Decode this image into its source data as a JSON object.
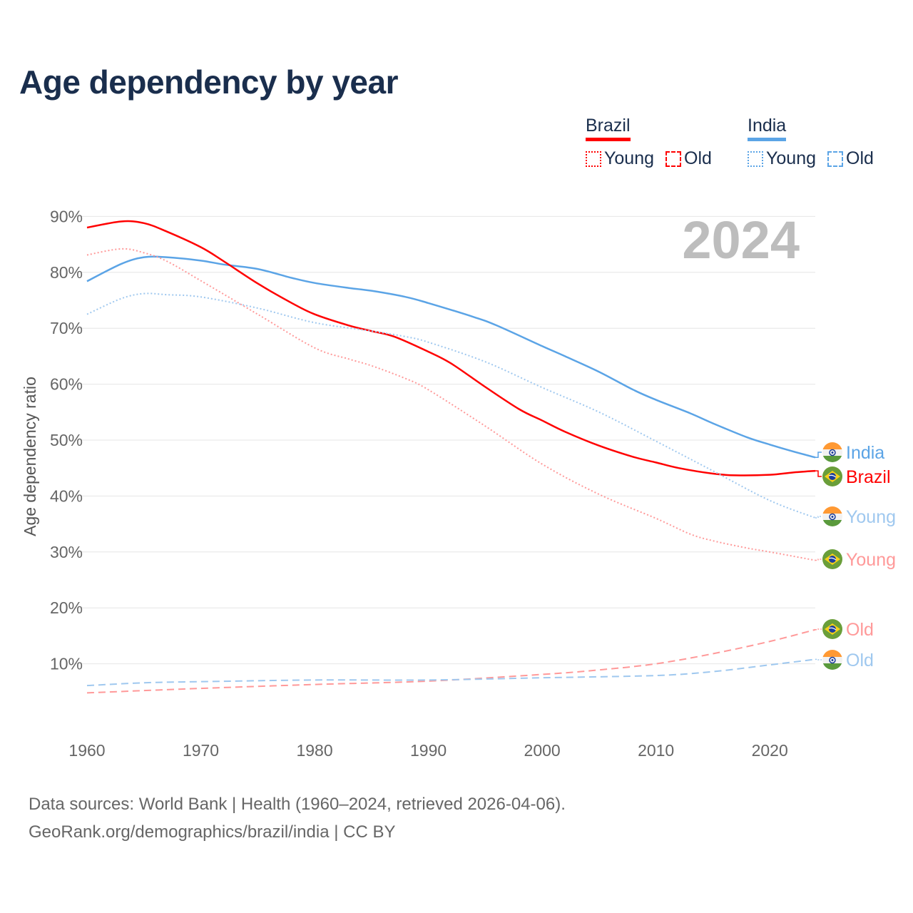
{
  "title": "Age dependency by year",
  "legend": {
    "groups": [
      {
        "name": "Brazil",
        "color": "#ff0000",
        "young": "Young",
        "old": "Old"
      },
      {
        "name": "India",
        "color": "#5ba4e6",
        "young": "Young",
        "old": "Old"
      }
    ]
  },
  "footer": {
    "line1": "Data sources: World Bank | Health (1960–2024, retrieved 2026-04-06).",
    "line2": "GeoRank.org/demographics/brazil/india | CC BY"
  },
  "chart_data": {
    "type": "line",
    "title": "Age dependency by year",
    "xlabel": "",
    "ylabel": "Age dependency ratio",
    "year_watermark": "2024",
    "xlim": [
      1960,
      2024
    ],
    "ylim": [
      0,
      92
    ],
    "x_ticks": [
      "1960",
      "1970",
      "1980",
      "1990",
      "2000",
      "2010",
      "2020"
    ],
    "y_ticks": [
      "10%",
      "20%",
      "30%",
      "40%",
      "50%",
      "60%",
      "70%",
      "80%",
      "90%"
    ],
    "grid": true,
    "series": [
      {
        "name": "India",
        "label": "India",
        "flag": "india",
        "color": "#5ba4e6",
        "style": "solid",
        "points": [
          [
            1960,
            78.4
          ],
          [
            1963,
            81.5
          ],
          [
            1965,
            82.7
          ],
          [
            1967,
            82.7
          ],
          [
            1970,
            82.1
          ],
          [
            1972,
            81.4
          ],
          [
            1975,
            80.6
          ],
          [
            1978,
            79
          ],
          [
            1980,
            78.1
          ],
          [
            1983,
            77.2
          ],
          [
            1985,
            76.7
          ],
          [
            1988,
            75.6
          ],
          [
            1990,
            74.5
          ],
          [
            1994,
            72
          ],
          [
            1996,
            70.5
          ],
          [
            2000,
            66.8
          ],
          [
            2002,
            65
          ],
          [
            2005,
            62.2
          ],
          [
            2008,
            59
          ],
          [
            2010,
            57.2
          ],
          [
            2013,
            54.8
          ],
          [
            2015,
            53
          ],
          [
            2018,
            50.5
          ],
          [
            2020,
            49.2
          ],
          [
            2022,
            48
          ],
          [
            2024,
            46.9
          ]
        ]
      },
      {
        "name": "Brazil",
        "label": "Brazil",
        "flag": "brazil",
        "color": "#ff0000",
        "style": "solid",
        "points": [
          [
            1960,
            88
          ],
          [
            1963,
            89.1
          ],
          [
            1965,
            88.8
          ],
          [
            1967,
            87.3
          ],
          [
            1970,
            84.5
          ],
          [
            1972,
            82
          ],
          [
            1975,
            78
          ],
          [
            1978,
            74.5
          ],
          [
            1980,
            72.5
          ],
          [
            1983,
            70.5
          ],
          [
            1985,
            69.5
          ],
          [
            1987,
            68.5
          ],
          [
            1990,
            65.8
          ],
          [
            1992,
            63.7
          ],
          [
            1995,
            59.5
          ],
          [
            1998,
            55.5
          ],
          [
            2000,
            53.5
          ],
          [
            2002,
            51.5
          ],
          [
            2005,
            49
          ],
          [
            2008,
            47
          ],
          [
            2010,
            46
          ],
          [
            2012,
            45
          ],
          [
            2015,
            44
          ],
          [
            2017,
            43.7
          ],
          [
            2020,
            43.8
          ],
          [
            2022,
            44.2
          ],
          [
            2024,
            44.5
          ]
        ]
      },
      {
        "name": "India Young",
        "label": "Young",
        "flag": "india",
        "color": "#9fc8ef",
        "style": "dotted",
        "points": [
          [
            1960,
            72.5
          ],
          [
            1963,
            75.3
          ],
          [
            1965,
            76.2
          ],
          [
            1967,
            76
          ],
          [
            1970,
            75.6
          ],
          [
            1975,
            73.6
          ],
          [
            1980,
            71
          ],
          [
            1985,
            69.5
          ],
          [
            1988,
            68.5
          ],
          [
            1990,
            67.5
          ],
          [
            1995,
            64
          ],
          [
            2000,
            59.4
          ],
          [
            2005,
            55
          ],
          [
            2010,
            49.8
          ],
          [
            2015,
            44.5
          ],
          [
            2020,
            39.2
          ],
          [
            2024,
            36.1
          ]
        ]
      },
      {
        "name": "Brazil Young",
        "label": "Young",
        "flag": "brazil",
        "color": "#ff9999",
        "style": "dotted",
        "points": [
          [
            1960,
            83.1
          ],
          [
            1963,
            84.2
          ],
          [
            1965,
            83.5
          ],
          [
            1967,
            82
          ],
          [
            1970,
            78.5
          ],
          [
            1975,
            72.5
          ],
          [
            1980,
            66.5
          ],
          [
            1983,
            64.5
          ],
          [
            1985,
            63.3
          ],
          [
            1988,
            61
          ],
          [
            1990,
            59
          ],
          [
            1995,
            52.5
          ],
          [
            2000,
            45.7
          ],
          [
            2005,
            40.3
          ],
          [
            2010,
            36
          ],
          [
            2013,
            33.2
          ],
          [
            2015,
            32
          ],
          [
            2018,
            30.7
          ],
          [
            2020,
            30
          ],
          [
            2024,
            28.5
          ]
        ]
      },
      {
        "name": "Brazil Old",
        "label": "Old",
        "flag": "brazil",
        "color": "#ff9999",
        "style": "dashed",
        "points": [
          [
            1960,
            4.8
          ],
          [
            1970,
            5.6
          ],
          [
            1980,
            6.3
          ],
          [
            1990,
            6.9
          ],
          [
            2000,
            8.1
          ],
          [
            2005,
            8.9
          ],
          [
            2010,
            10
          ],
          [
            2015,
            11.8
          ],
          [
            2020,
            14
          ],
          [
            2024,
            16.1
          ]
        ]
      },
      {
        "name": "India Old",
        "label": "Old",
        "flag": "india",
        "color": "#9fc8ef",
        "style": "dashed",
        "points": [
          [
            1960,
            6.1
          ],
          [
            1965,
            6.6
          ],
          [
            1970,
            6.8
          ],
          [
            1980,
            7.1
          ],
          [
            1990,
            7.1
          ],
          [
            2000,
            7.5
          ],
          [
            2010,
            7.9
          ],
          [
            2015,
            8.6
          ],
          [
            2020,
            9.8
          ],
          [
            2024,
            10.8
          ]
        ]
      }
    ]
  }
}
